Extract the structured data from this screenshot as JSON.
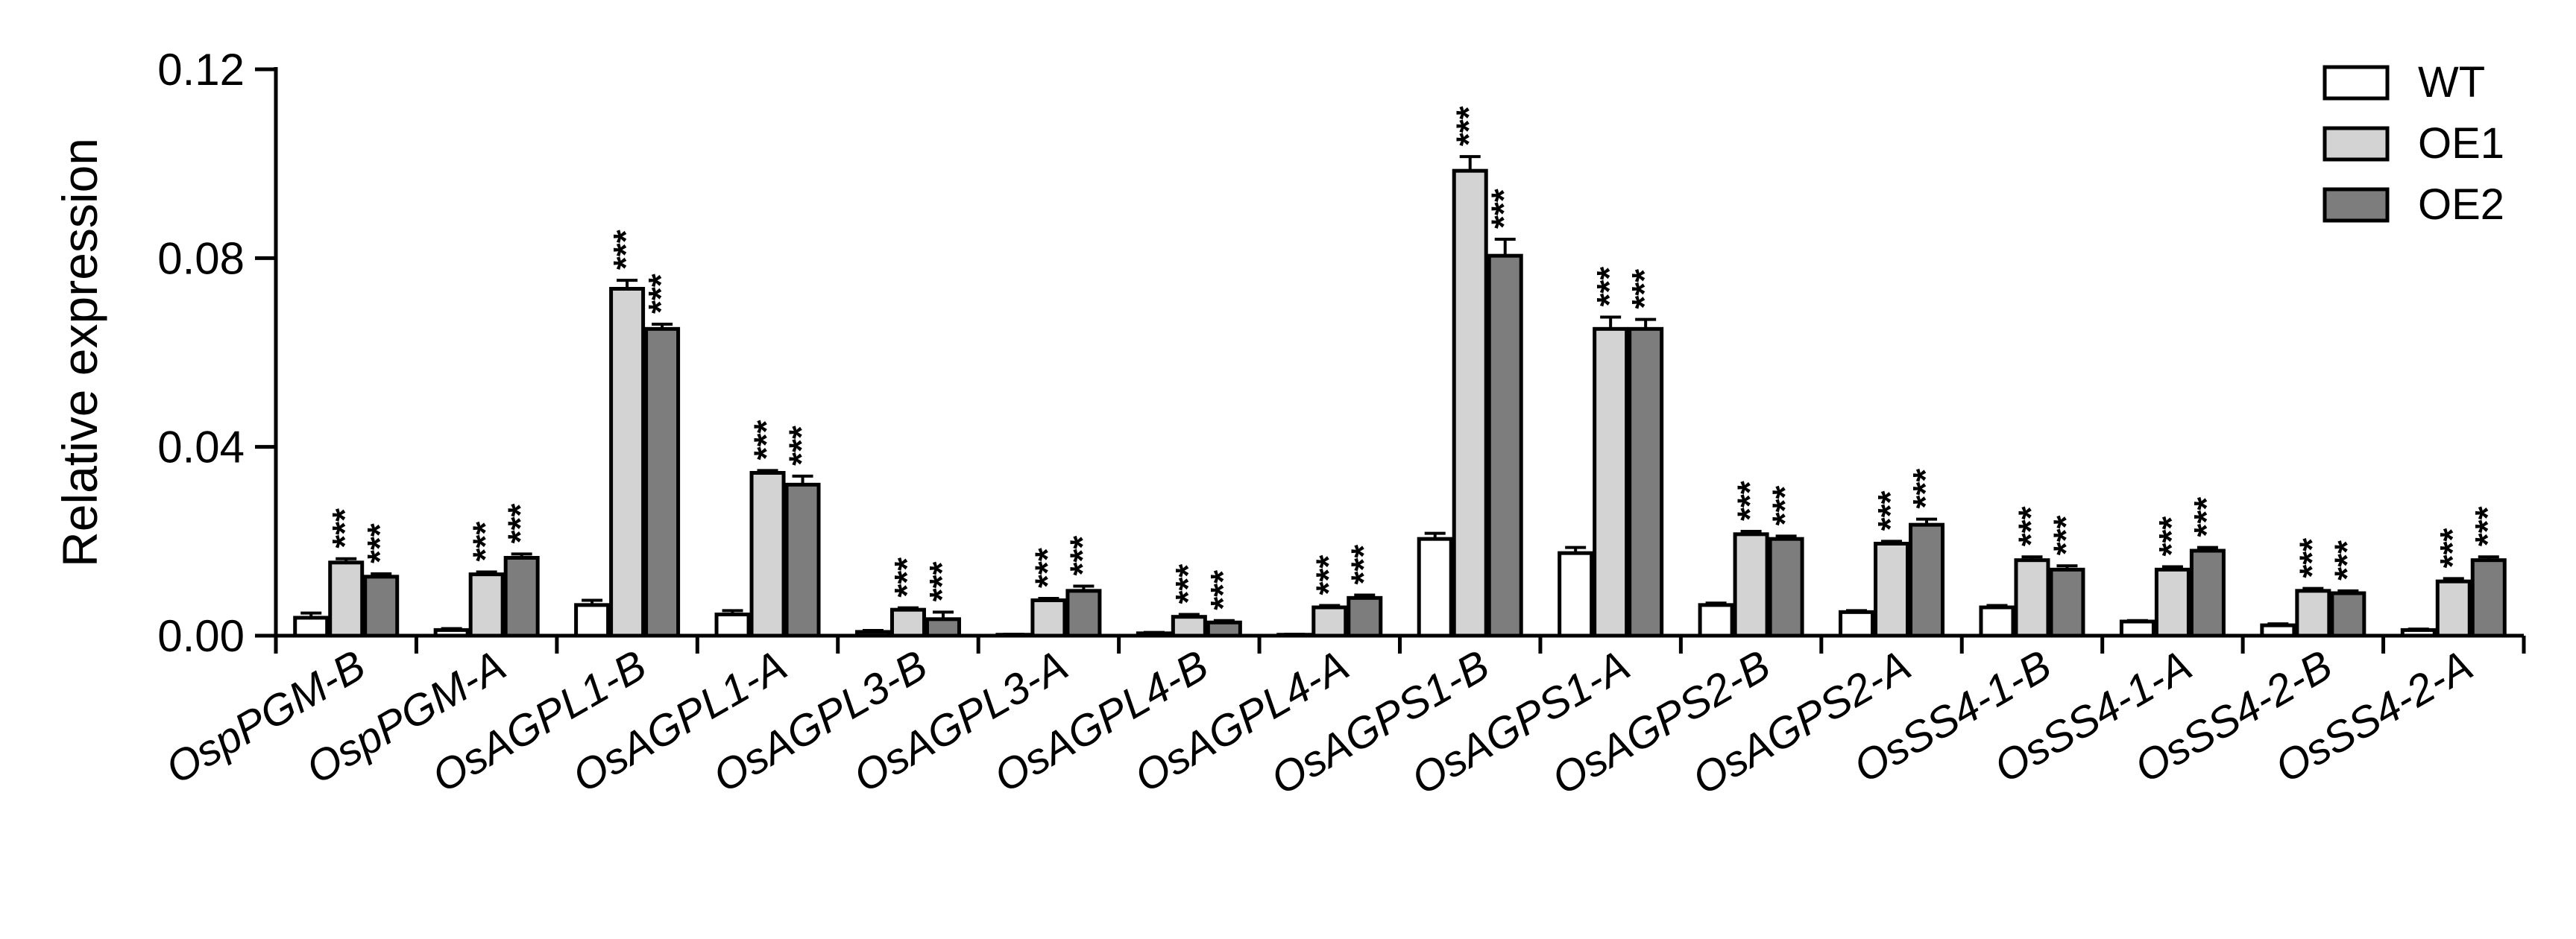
{
  "chart_data": {
    "type": "bar",
    "ylabel": "Relative expression",
    "xlabel": "",
    "ylim": [
      0,
      0.12
    ],
    "yticks": [
      "0.00",
      "0.04",
      "0.08",
      "0.12"
    ],
    "grid": false,
    "legend_position": "top-right",
    "categories": [
      "OspPGM-B",
      "OspPGM-A",
      "OsAGPL1-B",
      "OsAGPL1-A",
      "OsAGPL3-B",
      "OsAGPL3-A",
      "OsAGPL4-B",
      "OsAGPL4-A",
      "OsAGPS1-B",
      "OsAGPS1-A",
      "OsAGPS2-B",
      "OsAGPS2-A",
      "OsSS4-1-B",
      "OsSS4-1-A",
      "OsSS4-2-B",
      "OsSS4-2-A"
    ],
    "series": [
      {
        "name": "WT",
        "color": "#ffffff",
        "values": [
          0.0038,
          0.0012,
          0.0065,
          0.0045,
          0.0008,
          0.0002,
          0.0005,
          0.0002,
          0.0205,
          0.0175,
          0.0065,
          0.005,
          0.006,
          0.003,
          0.0022,
          0.0012
        ],
        "errors": [
          0.001,
          0.0003,
          0.001,
          0.0008,
          0.0003,
          0.0001,
          0.0002,
          0.0001,
          0.0012,
          0.0012,
          0.0004,
          0.0003,
          0.0004,
          0.0002,
          0.0003,
          0.0002
        ],
        "significance": [
          "",
          "",
          "",
          "",
          "",
          "",
          "",
          "",
          "",
          "",
          "",
          "",
          "",
          "",
          "",
          ""
        ]
      },
      {
        "name": "OE1",
        "color": "#d3d3d3",
        "values": [
          0.0155,
          0.013,
          0.0735,
          0.0345,
          0.0055,
          0.0075,
          0.004,
          0.006,
          0.0985,
          0.065,
          0.0215,
          0.0195,
          0.016,
          0.014,
          0.0095,
          0.0115
        ],
        "errors": [
          0.0008,
          0.0005,
          0.0018,
          0.0005,
          0.0004,
          0.0004,
          0.0005,
          0.0004,
          0.003,
          0.0025,
          0.0006,
          0.0005,
          0.0007,
          0.0006,
          0.0005,
          0.0006
        ],
        "significance": [
          "***",
          "***",
          "***",
          "***",
          "***",
          "***",
          "***",
          "***",
          "***",
          "***",
          "***",
          "***",
          "***",
          "***",
          "***",
          "***"
        ]
      },
      {
        "name": "OE2",
        "color": "#7d7d7d",
        "values": [
          0.0125,
          0.0165,
          0.065,
          0.032,
          0.0035,
          0.0095,
          0.0028,
          0.008,
          0.0805,
          0.065,
          0.0205,
          0.0235,
          0.014,
          0.018,
          0.009,
          0.016
        ],
        "errors": [
          0.0006,
          0.0008,
          0.001,
          0.0018,
          0.0015,
          0.001,
          0.0004,
          0.0006,
          0.0035,
          0.002,
          0.0006,
          0.0012,
          0.0008,
          0.0007,
          0.0005,
          0.0007
        ],
        "significance": [
          "***",
          "***",
          "***",
          "***",
          "***",
          "***",
          "***",
          "***",
          "***",
          "***",
          "***",
          "***",
          "***",
          "***",
          "***",
          "***"
        ]
      }
    ]
  }
}
